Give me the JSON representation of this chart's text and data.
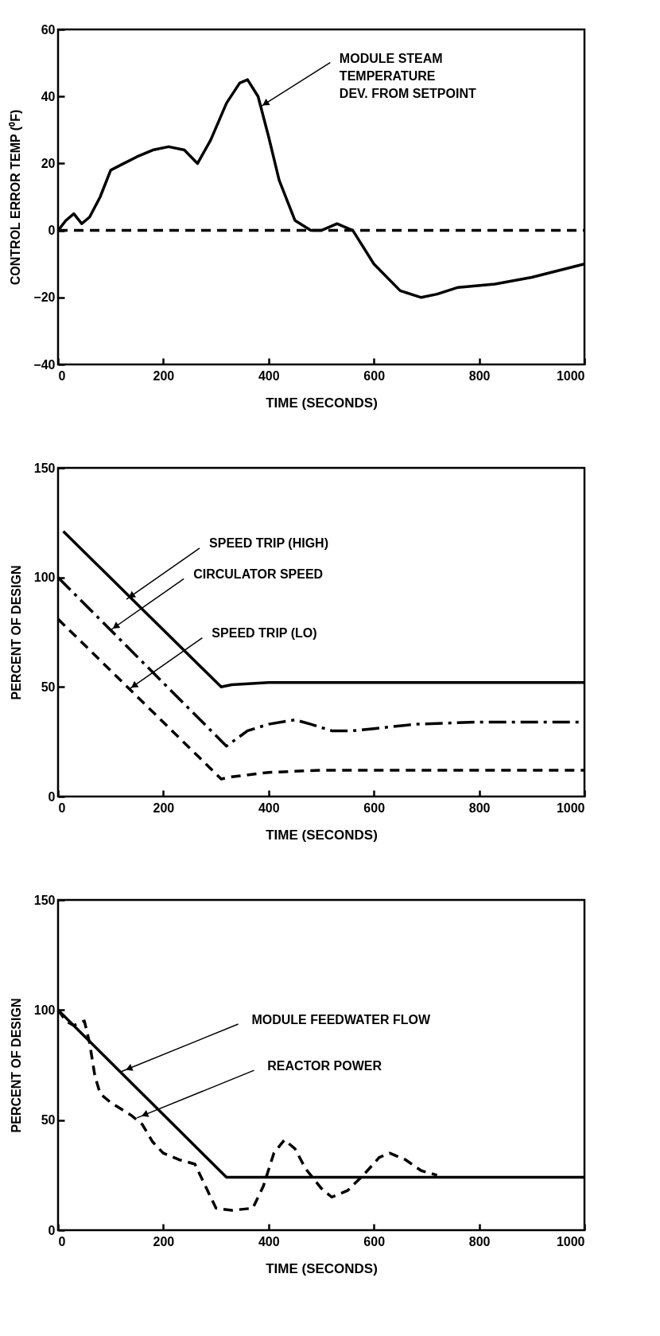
{
  "chart_data": [
    {
      "type": "line",
      "xlabel": "TIME (SECONDS)",
      "ylabel": "CONTROL ERROR TEMP (⁰F)",
      "xlim": [
        0,
        1000
      ],
      "ylim": [
        -40,
        60
      ],
      "xticks": [
        0,
        200,
        400,
        600,
        800,
        1000
      ],
      "yticks": [
        -40,
        -20,
        0,
        20,
        40,
        60
      ],
      "grid": false,
      "series": [
        {
          "color": "#000000",
          "line_style": "solid",
          "x": [
            0,
            15,
            30,
            45,
            60,
            80,
            100,
            125,
            150,
            180,
            210,
            240,
            265,
            290,
            320,
            345,
            360,
            380,
            400,
            420,
            450,
            480,
            500,
            530,
            560,
            600,
            650,
            690,
            720,
            760,
            830,
            900,
            1000
          ],
          "values": [
            0,
            3,
            5,
            2,
            4,
            10,
            18,
            20,
            22,
            24,
            25,
            24,
            20,
            27,
            38,
            44,
            45,
            40,
            28,
            15,
            3,
            0,
            0,
            2,
            0,
            -10,
            -18,
            -20,
            -19,
            -17,
            -16,
            -14,
            -10
          ]
        },
        {
          "color": "#000000",
          "line_style": "dashed",
          "x": [
            0,
            1000
          ],
          "values": [
            0,
            0
          ]
        }
      ],
      "annotations": [
        {
          "text": "MODULE STEAM\nTEMPERATURE\nDEV. FROM SETPOINT",
          "x": 385,
          "y": 37
        }
      ]
    },
    {
      "type": "line",
      "xlabel": "TIME (SECONDS)",
      "ylabel": "PERCENT OF DESIGN",
      "xlim": [
        0,
        1000
      ],
      "ylim": [
        0,
        150
      ],
      "xticks": [
        0,
        200,
        400,
        600,
        800,
        1000
      ],
      "yticks": [
        0,
        50,
        100,
        150
      ],
      "grid": false,
      "series": [
        {
          "color": "#000000",
          "line_style": "solid",
          "x": [
            10,
            310,
            330,
            400,
            1000
          ],
          "values": [
            121,
            50,
            51,
            52,
            52
          ]
        },
        {
          "color": "#000000",
          "line_style": "dashdot",
          "x": [
            0,
            320,
            360,
            400,
            450,
            480,
            520,
            560,
            600,
            680,
            800,
            1000
          ],
          "values": [
            100,
            23,
            30,
            33,
            35,
            33,
            30,
            30,
            31,
            33,
            34,
            34
          ]
        },
        {
          "color": "#000000",
          "line_style": "dashed",
          "x": [
            0,
            310,
            330,
            400,
            500,
            1000
          ],
          "values": [
            81,
            8,
            9,
            11,
            12,
            12
          ]
        }
      ],
      "annotations": [
        {
          "text": "SPEED TRIP (HIGH)",
          "x": 130,
          "y": 90
        },
        {
          "text": "CIRCULATOR SPEED",
          "x": 100,
          "y": 76
        },
        {
          "text": "SPEED TRIP (LO)",
          "x": 135,
          "y": 49
        }
      ]
    },
    {
      "type": "line",
      "xlabel": "TIME (SECONDS)",
      "ylabel": "PERCENT OF DESIGN",
      "xlim": [
        0,
        1000
      ],
      "ylim": [
        0,
        150
      ],
      "xticks": [
        0,
        200,
        400,
        600,
        800,
        1000
      ],
      "yticks": [
        0,
        50,
        100,
        150
      ],
      "grid": false,
      "series": [
        {
          "color": "#000000",
          "line_style": "solid",
          "x": [
            0,
            320,
            1000
          ],
          "values": [
            100,
            24,
            24
          ]
        },
        {
          "color": "#000000",
          "line_style": "dashed",
          "x": [
            0,
            15,
            30,
            50,
            60,
            70,
            80,
            100,
            120,
            140,
            160,
            180,
            200,
            230,
            260,
            280,
            300,
            330,
            370,
            390,
            410,
            430,
            450,
            470,
            500,
            520,
            550,
            580,
            610,
            630,
            660,
            690,
            720
          ],
          "values": [
            100,
            95,
            93,
            95,
            85,
            70,
            62,
            58,
            55,
            52,
            48,
            40,
            35,
            32,
            30,
            20,
            10,
            9,
            10,
            20,
            35,
            41,
            37,
            28,
            19,
            15,
            18,
            25,
            33,
            35,
            32,
            27,
            25
          ]
        }
      ],
      "annotations": [
        {
          "text": "MODULE FEEDWATER FLOW",
          "x": 120,
          "y": 72
        },
        {
          "text": "REACTOR POWER",
          "x": 150,
          "y": 51
        }
      ]
    }
  ]
}
